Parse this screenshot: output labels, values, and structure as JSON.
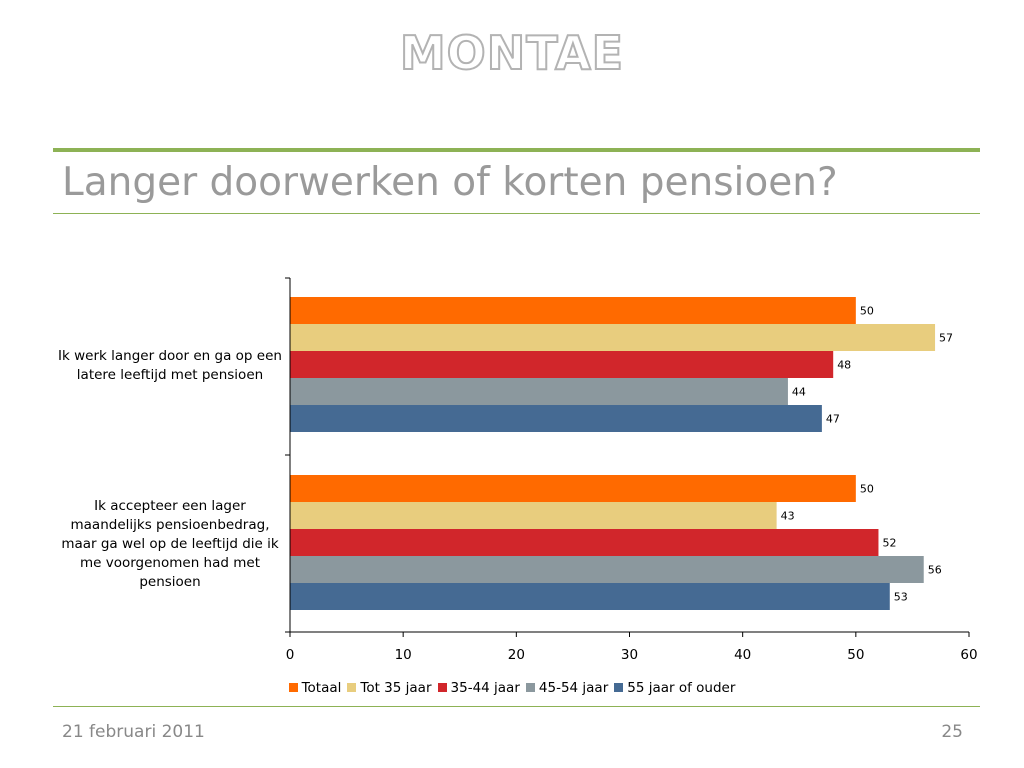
{
  "slide": {
    "logo": "MONTAE",
    "title": "Langer doorwerken of korten pensioen?",
    "date": "21 februari 2011",
    "page_number": "25"
  },
  "chart_data": {
    "type": "bar",
    "orientation": "horizontal",
    "categories": [
      "Ik werk langer door en ga op een latere leeftijd met pensioen",
      "Ik accepteer een lager maandelijks pensioenbedrag, maar ga wel op de leeftijd die ik me voorgenomen had met pensioen"
    ],
    "series": [
      {
        "name": "Totaal",
        "color": "#ff6a00",
        "values": [
          50,
          50
        ]
      },
      {
        "name": "Tot 35 jaar",
        "color": "#e8cd7e",
        "values": [
          57,
          43
        ]
      },
      {
        "name": "35-44 jaar",
        "color": "#d1262b",
        "values": [
          48,
          52
        ]
      },
      {
        "name": "45-54 jaar",
        "color": "#8b989e",
        "values": [
          44,
          56
        ]
      },
      {
        "name": "55 jaar of ouder",
        "color": "#456a93",
        "values": [
          47,
          53
        ]
      }
    ],
    "xlim": [
      0,
      60
    ],
    "xticks": [
      0,
      10,
      20,
      30,
      40,
      50,
      60
    ],
    "data_labels": true,
    "grid": false,
    "legend_position": "bottom"
  }
}
